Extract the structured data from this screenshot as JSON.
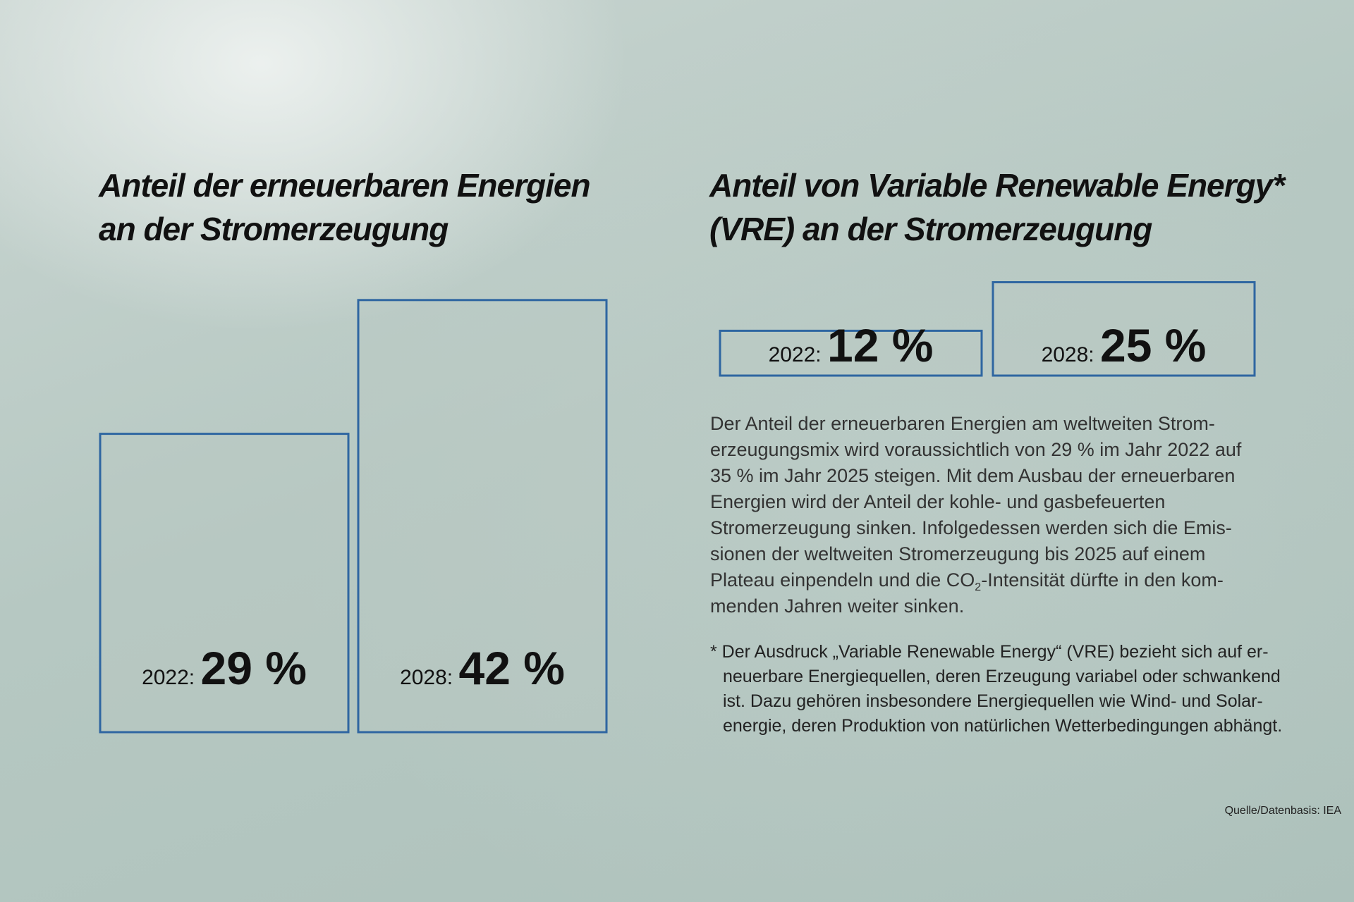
{
  "chart_data": [
    {
      "type": "bar",
      "title": "Anteil der erneuerbaren Energien\nan der Stromerzeugung",
      "categories": [
        "2022",
        "2028"
      ],
      "category_labels": [
        "2022:",
        "2028:"
      ],
      "values": [
        29,
        42
      ],
      "value_labels": [
        "29 %",
        "42 %"
      ],
      "unit": "%",
      "orientation": "vertical",
      "bar_outline_color": "#2f66a1"
    },
    {
      "type": "bar",
      "title": "Anteil von Variable Renewable Energy*\n(VRE) an der Stromerzeugung",
      "categories": [
        "2022",
        "2028"
      ],
      "category_labels": [
        "2022:",
        "2028:"
      ],
      "values": [
        12,
        25
      ],
      "value_labels": [
        "12 %",
        "25 %"
      ],
      "unit": "%",
      "orientation": "vertical",
      "bar_outline_color": "#2f66a1"
    }
  ],
  "body": {
    "part1": "Der Anteil der erneuerbaren Energien am weltweiten Strom­erzeugungsmix wird voraussichtlich von 29 % im Jahr 2022 auf 35 % im Jahr 2025 steigen. Mit dem Ausbau der erneuer­baren Energien wird der Anteil der kohle- und gasbefeuerten Stromerzeugung sinken. Infolgedessen werden sich die Emis­sionen der weltweiten Stromerzeugung bis 2025 auf einem Plateau einpendeln und die CO",
    "sub": "2",
    "part2": "-Intensität dürfte in den kom­menden Jahren weiter sinken."
  },
  "footnote": "* Der Ausdruck „Variable Renewable Energy“ (VRE) bezieht sich auf er­neuerbare Energiequellen, deren Erzeugung variabel oder schwankend ist. Dazu gehören insbesondere Energiequellen wie Wind- und Solar­energie, deren Produktion von natürlichen Wetterbedingungen abhängt.",
  "source": "Quelle/Datenbasis: IEA"
}
